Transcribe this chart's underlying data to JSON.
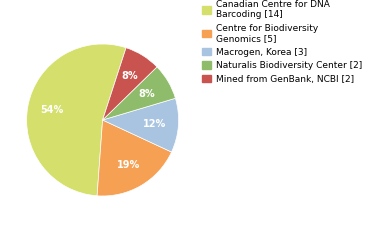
{
  "labels": [
    "Canadian Centre for DNA\nBarcoding [14]",
    "Centre for Biodiversity\nGenomics [5]",
    "Macrogen, Korea [3]",
    "Naturalis Biodiversity Center [2]",
    "Mined from GenBank, NCBI [2]"
  ],
  "values": [
    14,
    5,
    3,
    2,
    2
  ],
  "colors": [
    "#d4e06b",
    "#f5a053",
    "#a8c4e0",
    "#8fbc6a",
    "#c9534f"
  ],
  "startangle": 72,
  "background_color": "#ffffff",
  "pct_fontsize": 7,
  "legend_fontsize": 6.5
}
